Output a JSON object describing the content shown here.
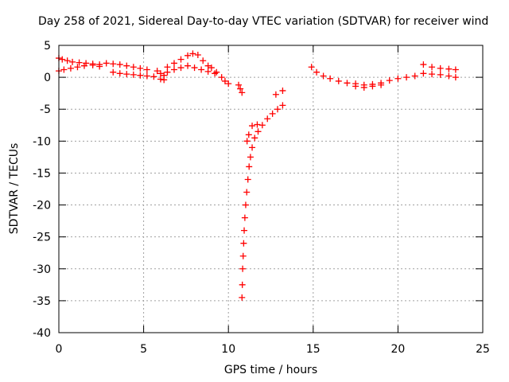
{
  "chart_data": {
    "type": "scatter",
    "title": "Day 258 of 2021, Sidereal Day-to-day VTEC variation (SDTVAR) for receiver wind",
    "xlabel": "GPS time / hours",
    "ylabel": "SDTVAR / TECUs",
    "xlim": [
      0,
      25
    ],
    "ylim": [
      -40,
      5
    ],
    "xticks": [
      "0",
      "5",
      "10",
      "15",
      "20",
      "25"
    ],
    "yticks": [
      "5",
      "0",
      "-5",
      "-10",
      "-15",
      "-20",
      "-25",
      "-30",
      "-35",
      "-40"
    ],
    "grid": true,
    "marker": "+",
    "color": "#ff0000",
    "series": [
      {
        "name": "SDTVAR",
        "points": [
          [
            0.0,
            3.0
          ],
          [
            0.2,
            2.8
          ],
          [
            0.5,
            2.6
          ],
          [
            0.8,
            2.4
          ],
          [
            1.2,
            2.3
          ],
          [
            1.6,
            2.2
          ],
          [
            2.0,
            2.1
          ],
          [
            2.4,
            2.0
          ],
          [
            0.0,
            1.0
          ],
          [
            0.3,
            1.2
          ],
          [
            0.7,
            1.4
          ],
          [
            1.1,
            1.6
          ],
          [
            1.5,
            1.8
          ],
          [
            2.0,
            1.9
          ],
          [
            2.4,
            1.7
          ],
          [
            2.8,
            2.2
          ],
          [
            3.2,
            2.1
          ],
          [
            3.6,
            2.0
          ],
          [
            4.0,
            1.8
          ],
          [
            4.4,
            1.6
          ],
          [
            4.8,
            1.4
          ],
          [
            5.2,
            1.2
          ],
          [
            3.2,
            0.8
          ],
          [
            3.6,
            0.6
          ],
          [
            4.0,
            0.5
          ],
          [
            4.4,
            0.4
          ],
          [
            4.8,
            0.3
          ],
          [
            5.2,
            0.2
          ],
          [
            5.6,
            0.1
          ],
          [
            5.8,
            1.0
          ],
          [
            6.0,
            0.6
          ],
          [
            6.2,
            0.3
          ],
          [
            6.0,
            -0.3
          ],
          [
            6.2,
            -0.4
          ],
          [
            6.4,
            1.6
          ],
          [
            6.8,
            2.2
          ],
          [
            7.2,
            2.8
          ],
          [
            7.6,
            3.4
          ],
          [
            7.9,
            3.7
          ],
          [
            8.2,
            3.5
          ],
          [
            8.5,
            2.6
          ],
          [
            8.8,
            1.8
          ],
          [
            6.4,
            0.8
          ],
          [
            6.8,
            1.2
          ],
          [
            7.2,
            1.5
          ],
          [
            7.6,
            1.8
          ],
          [
            8.0,
            1.5
          ],
          [
            8.4,
            1.2
          ],
          [
            8.8,
            0.9
          ],
          [
            9.2,
            0.6
          ],
          [
            9.0,
            1.5
          ],
          [
            9.3,
            0.8
          ],
          [
            9.6,
            0.0
          ],
          [
            9.8,
            -0.6
          ],
          [
            10.0,
            -1.0
          ],
          [
            10.6,
            -1.2
          ],
          [
            10.7,
            -1.8
          ],
          [
            10.8,
            -2.4
          ],
          [
            10.8,
            -34.5
          ],
          [
            10.82,
            -32.5
          ],
          [
            10.84,
            -30.0
          ],
          [
            10.87,
            -28.0
          ],
          [
            10.9,
            -26.0
          ],
          [
            10.93,
            -24.0
          ],
          [
            10.97,
            -22.0
          ],
          [
            11.02,
            -20.0
          ],
          [
            11.08,
            -18.0
          ],
          [
            11.15,
            -16.0
          ],
          [
            11.22,
            -14.0
          ],
          [
            11.3,
            -12.5
          ],
          [
            11.4,
            -11.0
          ],
          [
            11.55,
            -9.5
          ],
          [
            11.75,
            -8.5
          ],
          [
            12.0,
            -7.5
          ],
          [
            12.3,
            -6.5
          ],
          [
            12.6,
            -5.7
          ],
          [
            12.9,
            -5.0
          ],
          [
            13.2,
            -4.4
          ],
          [
            11.1,
            -10.0
          ],
          [
            11.2,
            -9.0
          ],
          [
            11.4,
            -7.6
          ],
          [
            11.7,
            -7.4
          ],
          [
            12.8,
            -2.7
          ],
          [
            13.2,
            -2.1
          ],
          [
            14.9,
            1.6
          ],
          [
            15.2,
            0.8
          ],
          [
            15.6,
            0.2
          ],
          [
            16.0,
            -0.2
          ],
          [
            16.5,
            -0.6
          ],
          [
            17.0,
            -0.9
          ],
          [
            17.5,
            -1.0
          ],
          [
            18.0,
            -1.2
          ],
          [
            18.5,
            -1.1
          ],
          [
            19.0,
            -0.9
          ],
          [
            19.5,
            -0.5
          ],
          [
            20.0,
            -0.2
          ],
          [
            20.5,
            0.0
          ],
          [
            21.0,
            0.2
          ],
          [
            17.5,
            -1.4
          ],
          [
            18.0,
            -1.6
          ],
          [
            18.5,
            -1.4
          ],
          [
            19.0,
            -1.2
          ],
          [
            21.5,
            2.0
          ],
          [
            22.0,
            1.6
          ],
          [
            22.5,
            1.4
          ],
          [
            23.0,
            1.3
          ],
          [
            23.4,
            1.2
          ],
          [
            21.5,
            0.6
          ],
          [
            22.0,
            0.5
          ],
          [
            22.5,
            0.4
          ],
          [
            23.0,
            0.2
          ],
          [
            23.4,
            0.0
          ]
        ]
      }
    ]
  }
}
